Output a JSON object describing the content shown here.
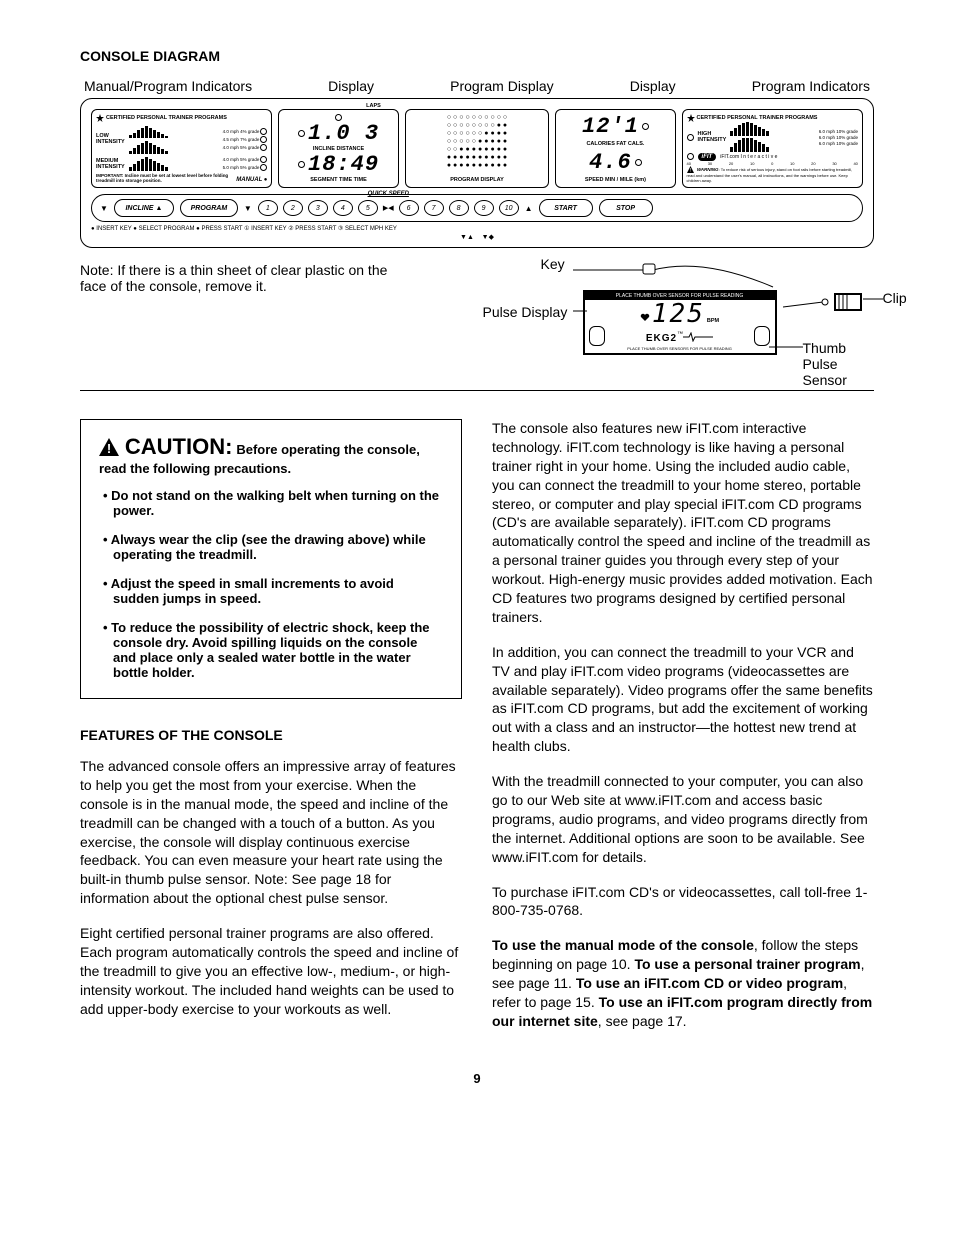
{
  "title": "CONSOLE DIAGRAM",
  "topLabels": {
    "a": "Manual/Program Indicators",
    "b": "Display",
    "c": "Program Display",
    "d": "Display",
    "e": "Program Indicators"
  },
  "leftPanel": {
    "header": "CERTIFIED PERSONAL TRAINER PROGRAMS",
    "low": "LOW\nINTENSITY",
    "medium": "MEDIUM\nINTENSITY",
    "speedNotes": [
      "4.0 mph 4% grade",
      "4.5 mph 7% grade",
      "4.0 mph 5% grade",
      "4.0 mph 5% grade",
      "5.0 mph 5% grade"
    ],
    "important": "IMPORTANT: Incline must be set at lowest level before folding treadmill into storage position.",
    "manual": "MANUAL"
  },
  "display1": {
    "topTiny": "LAPS",
    "val1": "1.0 3",
    "labels1": "INCLINE    DISTANCE",
    "val2": "18:49",
    "labels2": "SEGMENT TIME      TIME"
  },
  "progDisplay": {
    "caption": "PROGRAM DISPLAY",
    "fills": [
      5,
      5,
      5,
      5,
      5,
      6,
      6,
      6,
      6,
      6
    ]
  },
  "display2": {
    "val1": "12'1",
    "labels1": "CALORIES    FAT CALS.",
    "val2": "4.6",
    "labels2": "SPEED     MIN / MILE (km)"
  },
  "rightPanel": {
    "header": "CERTIFIED PERSONAL TRAINER PROGRAMS",
    "high": "HIGH\nINTENSITY",
    "speedNotes": [
      "6.0 mph 10% grade",
      "6.0 mph 10% grade",
      "6.0 mph 10% grade"
    ],
    "ifit": "iFIT.com  I n t e r a c t i v e",
    "axis": [
      "40",
      "30",
      "20",
      "10",
      "0",
      "10",
      "20",
      "30",
      "40"
    ],
    "warning": "WARNING: To reduce risk of serious injury, stand on foot rails before starting treadmill, read and understand the user's manual, all instructions, and the warnings before use. Keep children away."
  },
  "buttonRow": {
    "incline": "INCLINE",
    "program": "PROGRAM",
    "quick": "QUICK SPEED",
    "nums": [
      "1",
      "2",
      "3",
      "4",
      "5",
      "6",
      "7",
      "8",
      "9",
      "10"
    ],
    "start": "START",
    "stop": "STOP"
  },
  "instrLine": "● INSERT KEY ● SELECT PROGRAM ● PRESS START  ① INSERT KEY ② PRESS START ③ SELECT MPH KEY",
  "lower": {
    "note": "Note: If there is a thin sheet of clear plastic on the face of the console, remove it.",
    "key": "Key",
    "pulseDisplay": "Pulse Display",
    "clip": "Clip",
    "thumb": "Thumb Pulse Sensor",
    "bpm": "BPM",
    "bpmBoxTop": "PLACE THUMB OVER SENSOR FOR PULSE READING",
    "bpmVal": "125",
    "ekg": "EKG2"
  },
  "caution": {
    "title": "CAUTION:",
    "sub": "Before operating the console, read the following precautions.",
    "items": [
      "Do not stand on the walking belt when turning on the power.",
      "Always wear the clip (see the drawing above) while operating the treadmill.",
      "Adjust the speed in small increments to avoid sudden jumps in speed.",
      "To reduce the possibility of electric shock, keep the console dry. Avoid spilling liquids on the console and place only a sealed water bottle in the water bottle holder."
    ]
  },
  "featuresHeading": "FEATURES OF THE CONSOLE",
  "leftParas": [
    "The advanced console offers an impressive array of features to help you get the most from your exercise. When the console is in the manual mode, the speed and incline of the treadmill can be changed with a touch of a button. As you exercise, the console will display continuous exercise feedback. You can even measure your heart rate using the built-in thumb pulse sensor. Note: See page 18 for information about the optional chest pulse sensor.",
    "Eight certified personal trainer programs are also offered. Each program automatically controls the speed and incline of the treadmill to give you an effective low-, medium-, or high-intensity workout. The included hand weights can be used to add upper-body exercise to your workouts as well."
  ],
  "rightParas": [
    "The console also features new iFIT.com interactive technology. iFIT.com technology is like having a personal trainer right in your home. Using the included audio cable, you can connect the treadmill to your home stereo, portable stereo, or computer and play special iFIT.com CD programs (CD's are available separately). iFIT.com CD programs automatically control the speed and incline of the treadmill as a personal trainer guides you through every step of your workout. High-energy music provides added motivation. Each CD features two programs designed by certified personal trainers.",
    "In addition, you can connect the treadmill to your VCR and TV and play iFIT.com video programs (videocassettes are available separately). Video programs offer the same benefits as iFIT.com CD programs, but add the excitement of working out with a class and an instructor—the hottest new trend at health clubs.",
    "With the treadmill connected to your computer, you can also go to our Web site at www.iFIT.com and access basic programs, audio programs, and video programs directly from the internet. Additional options are soon to be available. See www.iFIT.com for details.",
    "To purchase iFIT.com CD's or videocassettes, call toll-free 1-800-735-0768."
  ],
  "rightFinal": {
    "a": "To use the manual mode of the console",
    "b": ", follow the steps beginning on page 10. ",
    "c": "To use a personal trainer program",
    "d": ", see page 11. ",
    "e": "To use an iFIT.com CD or video program",
    "f": ", refer to page 15. ",
    "g": "To use an iFIT.com program directly from our internet site",
    "h": ", see page 17."
  },
  "pageNum": "9"
}
